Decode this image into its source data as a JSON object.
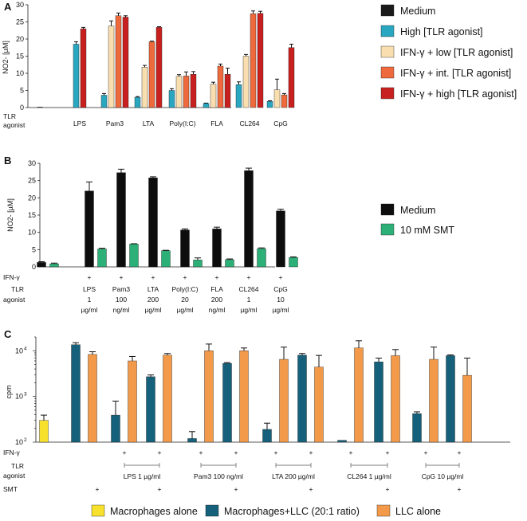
{
  "panels": [
    {
      "letter": "A",
      "type": "bar",
      "ylabel": "NO2- [µM]",
      "ylim": [
        0,
        30
      ],
      "yticks": [
        0,
        5,
        10,
        15,
        20,
        25,
        30
      ],
      "row_label_1": "TLR",
      "row_label_2": "agonist",
      "groups": [
        "",
        "LPS",
        "Pam3",
        "LTA",
        "Poly(I:C)",
        "FLA",
        "CL264",
        "CpG"
      ],
      "series": [
        {
          "name": "Medium",
          "color": "#1a1a1a",
          "values": [
            0.2,
            null,
            null,
            null,
            null,
            null,
            null,
            null
          ],
          "errors": [
            0.1,
            null,
            null,
            null,
            null,
            null,
            null,
            null
          ]
        },
        {
          "name": "High [TLR agonist]",
          "color": "#2aa7c0",
          "values": [
            null,
            18.5,
            3.6,
            3.0,
            5.0,
            1.2,
            6.7,
            1.8
          ],
          "errors": [
            null,
            0.7,
            0.5,
            0.2,
            0.5,
            0.1,
            0.8,
            0.2
          ]
        },
        {
          "name": "IFN-γ + low [TLR agonist]",
          "color": "#f9deb0",
          "values": [
            null,
            null,
            23.8,
            11.8,
            9.1,
            6.8,
            15.0,
            5.2
          ],
          "errors": [
            null,
            null,
            1.5,
            0.5,
            0.5,
            0.6,
            0.5,
            3.1
          ]
        },
        {
          "name": "IFN-γ + int. [TLR agonist]",
          "color": "#ee6a3c",
          "values": [
            null,
            null,
            26.8,
            19.2,
            9.2,
            12.1,
            27.4,
            3.7
          ],
          "errors": [
            null,
            null,
            0.8,
            0.2,
            1.2,
            0.6,
            0.8,
            0.4
          ]
        },
        {
          "name": "IFN-γ + high [TLR agonist]",
          "color": "#c8201e",
          "values": [
            null,
            23.0,
            26.4,
            23.4,
            9.7,
            9.7,
            27.5,
            17.5
          ],
          "errors": [
            null,
            0.4,
            0.4,
            0.2,
            0.8,
            1.8,
            0.6,
            1.0
          ]
        }
      ]
    },
    {
      "letter": "B",
      "type": "bar",
      "ylabel": "NO2- [µM]",
      "ylim": [
        0,
        30
      ],
      "yticks": [
        0,
        5,
        10,
        15,
        20,
        25,
        30
      ],
      "ifn_label": "IFN-γ",
      "row_label_1": "TLR",
      "row_label_2": "agonist",
      "groups": [
        {
          "ifn": "",
          "agonist": [
            "",
            "",
            ""
          ]
        },
        {
          "ifn": "+",
          "agonist": [
            "LPS",
            "1",
            "µg/ml"
          ]
        },
        {
          "ifn": "+",
          "agonist": [
            "Pam3",
            "100",
            "ng/ml"
          ]
        },
        {
          "ifn": "+",
          "agonist": [
            "LTA",
            "200",
            "µg/ml"
          ]
        },
        {
          "ifn": "+",
          "agonist": [
            "Poly(I:C)",
            "20",
            "µg/ml"
          ]
        },
        {
          "ifn": "+",
          "agonist": [
            "FLA",
            "200",
            "ng/ml"
          ]
        },
        {
          "ifn": "+",
          "agonist": [
            "CL264",
            "1",
            "µg/ml"
          ]
        },
        {
          "ifn": "+",
          "agonist": [
            "CpG",
            "10",
            "µg/ml"
          ]
        }
      ],
      "series": [
        {
          "name": "Medium",
          "color": "#0d0d0d",
          "values": [
            1.3,
            22.0,
            27.3,
            25.8,
            10.7,
            11.0,
            27.9,
            16.2
          ],
          "errors": [
            0.2,
            2.6,
            1.0,
            0.3,
            0.3,
            0.5,
            0.7,
            0.5
          ]
        },
        {
          "name": "10 mM SMT",
          "color": "#2daf78",
          "values": [
            0.9,
            5.2,
            6.6,
            4.7,
            2.0,
            2.1,
            5.3,
            2.7
          ],
          "errors": [
            0.2,
            0.2,
            0.1,
            0.1,
            0.6,
            0.2,
            0.2,
            0.2
          ]
        }
      ]
    },
    {
      "letter": "C",
      "type": "bar",
      "yscale": "log",
      "ylabel": "cpm",
      "ylim": [
        100,
        20000
      ],
      "yticks": [
        {
          "value": 100,
          "base": "10",
          "exp": "2"
        },
        {
          "value": 1000,
          "base": "10",
          "exp": "3"
        },
        {
          "value": 10000,
          "base": "10",
          "exp": "4"
        }
      ],
      "ifn_label": "IFN-γ",
      "row_label_1": "TLR",
      "row_label_2": "agonist",
      "smt_label": "SMT",
      "columns": [
        {
          "ifn": "",
          "smt": "",
          "yellow": 300,
          "yellow_err": 90
        },
        {
          "ifn": "",
          "smt": "",
          "teal": 13500,
          "teal_err": 1500,
          "orange": 8300,
          "orange_err": 1200
        },
        {
          "ifn": "",
          "smt": "+",
          "spacer": true
        },
        {
          "ifn": "+",
          "smt": "",
          "teal": 390,
          "teal_err": 400,
          "orange": 6000,
          "orange_err": 1500
        },
        {
          "ifn": "+",
          "smt": "+",
          "teal": 2700,
          "teal_err": 250,
          "orange": 8000,
          "orange_err": 700
        },
        {
          "ifn": "+",
          "smt": "",
          "teal": 120,
          "teal_err": 50,
          "orange": 10000,
          "orange_err": 4000
        },
        {
          "ifn": "+",
          "smt": "+",
          "teal": 5300,
          "teal_err": 200,
          "orange": 10000,
          "orange_err": 1500
        },
        {
          "ifn": "+",
          "smt": "",
          "teal": 190,
          "teal_err": 70,
          "orange": 6500,
          "orange_err": 5500
        },
        {
          "ifn": "+",
          "smt": "+",
          "teal": 8000,
          "teal_err": 700,
          "orange": 4400,
          "orange_err": 3500
        },
        {
          "ifn": "+",
          "smt": "",
          "teal": 110,
          "teal_err": 0,
          "orange": 11500,
          "orange_err": 5000
        },
        {
          "ifn": "+",
          "smt": "+",
          "teal": 5700,
          "teal_err": 1200,
          "orange": 7800,
          "orange_err": 2800
        },
        {
          "ifn": "+",
          "smt": "",
          "teal": 420,
          "teal_err": 40,
          "orange": 6500,
          "orange_err": 5500
        },
        {
          "ifn": "+",
          "smt": "+",
          "teal": 7800,
          "teal_err": 300,
          "orange": 2900,
          "orange_err": 4000
        }
      ],
      "agonist_brackets": [
        "LPS 1 µg/ml",
        "Pam3 100 ng/ml",
        "LTA 200 µg/ml",
        "CL264 1 µg/ml",
        "CpG 10 µg/ml"
      ],
      "legend": [
        {
          "name": "Macrophages alone",
          "color": "#f7e12c"
        },
        {
          "name": "Macrophages+LLC (20:1 ratio)",
          "color": "#15607a"
        },
        {
          "name": "LLC alone",
          "color": "#f29a4a"
        }
      ]
    }
  ]
}
